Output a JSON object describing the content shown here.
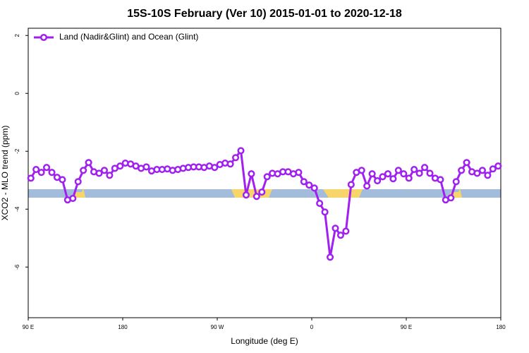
{
  "chart_data": {
    "type": "line",
    "title": "15S-10S February (Ver 10)   2015-01-01 to 2020-12-18",
    "x_label": "Longitude (deg E)",
    "y_label": "XCO2 - MLO trend (ppm)",
    "x": [
      92.5,
      97.5,
      102.5,
      107.5,
      112.5,
      117.5,
      122.5,
      127.5,
      132.5,
      137.5,
      142.5,
      147.5,
      152.5,
      157.5,
      162.5,
      167.5,
      172.5,
      177.5,
      182.5,
      187.5,
      192.5,
      197.5,
      202.5,
      207.5,
      212.5,
      217.5,
      222.5,
      227.5,
      232.5,
      237.5,
      242.5,
      247.5,
      252.5,
      257.5,
      262.5,
      267.5,
      272.5,
      277.5,
      282.5,
      287.5,
      292.5,
      297.5,
      302.5,
      307.5,
      312.5,
      317.5,
      322.5,
      327.5,
      332.5,
      337.5,
      342.5,
      347.5,
      352.5,
      357.5,
      362.5,
      367.5,
      372.5,
      377.5,
      382.5,
      387.5,
      392.5,
      397.5,
      402.5,
      407.5,
      412.5,
      417.5,
      422.5,
      427.5,
      432.5,
      437.5,
      442.5,
      447.5,
      452.5,
      457.5,
      462.5,
      467.5,
      472.5,
      477.5,
      482.5,
      487.5,
      492.5,
      497.5,
      502.5,
      507.5,
      512.5,
      517.5,
      522.5,
      527.5,
      532.5,
      537.5
    ],
    "series": [
      {
        "name": "Land (Nadir&Glint) and Ocean (Glint)",
        "color": "#a020f0",
        "values": [
          -2.93,
          -2.63,
          -2.73,
          -2.56,
          -2.73,
          -2.9,
          -2.98,
          -3.68,
          -3.63,
          -3.05,
          -2.66,
          -2.39,
          -2.71,
          -2.76,
          -2.66,
          -2.83,
          -2.59,
          -2.51,
          -2.41,
          -2.44,
          -2.51,
          -2.59,
          -2.54,
          -2.68,
          -2.63,
          -2.63,
          -2.61,
          -2.66,
          -2.63,
          -2.59,
          -2.56,
          -2.54,
          -2.54,
          -2.56,
          -2.51,
          -2.56,
          -2.46,
          -2.41,
          -2.44,
          -2.22,
          -1.98,
          -3.51,
          -2.78,
          -3.56,
          -3.41,
          -2.88,
          -2.76,
          -2.78,
          -2.71,
          -2.71,
          -2.78,
          -2.73,
          -3.05,
          -3.17,
          -3.27,
          -3.8,
          -4.1,
          -5.66,
          -4.66,
          -4.9,
          -4.76,
          -3.15,
          -2.73,
          -2.66,
          -3.2,
          -2.78,
          -3.02,
          -2.88,
          -2.78,
          -2.95,
          -2.66,
          -2.78,
          -2.93,
          -2.63,
          -2.76,
          -2.56,
          -2.76,
          -2.93,
          -2.98,
          -3.68,
          -3.61,
          -3.05,
          -2.66,
          -2.39,
          -2.71,
          -2.76,
          -2.66,
          -2.83,
          -2.61,
          -2.51
        ]
      }
    ],
    "xlim": [
      90,
      540
    ],
    "xticks": [
      {
        "value": 90,
        "label": "90 E"
      },
      180,
      {
        "value": 270,
        "label": "90 W"
      },
      {
        "value": 360,
        "label": "0"
      },
      {
        "value": 450,
        "label": "90 E"
      },
      {
        "value": 540,
        "label": "180"
      }
    ],
    "ylim": [
      -7.75,
      2.25
    ],
    "yticks": [
      2,
      0,
      -2,
      -4,
      -6
    ],
    "legend": "top-left"
  }
}
